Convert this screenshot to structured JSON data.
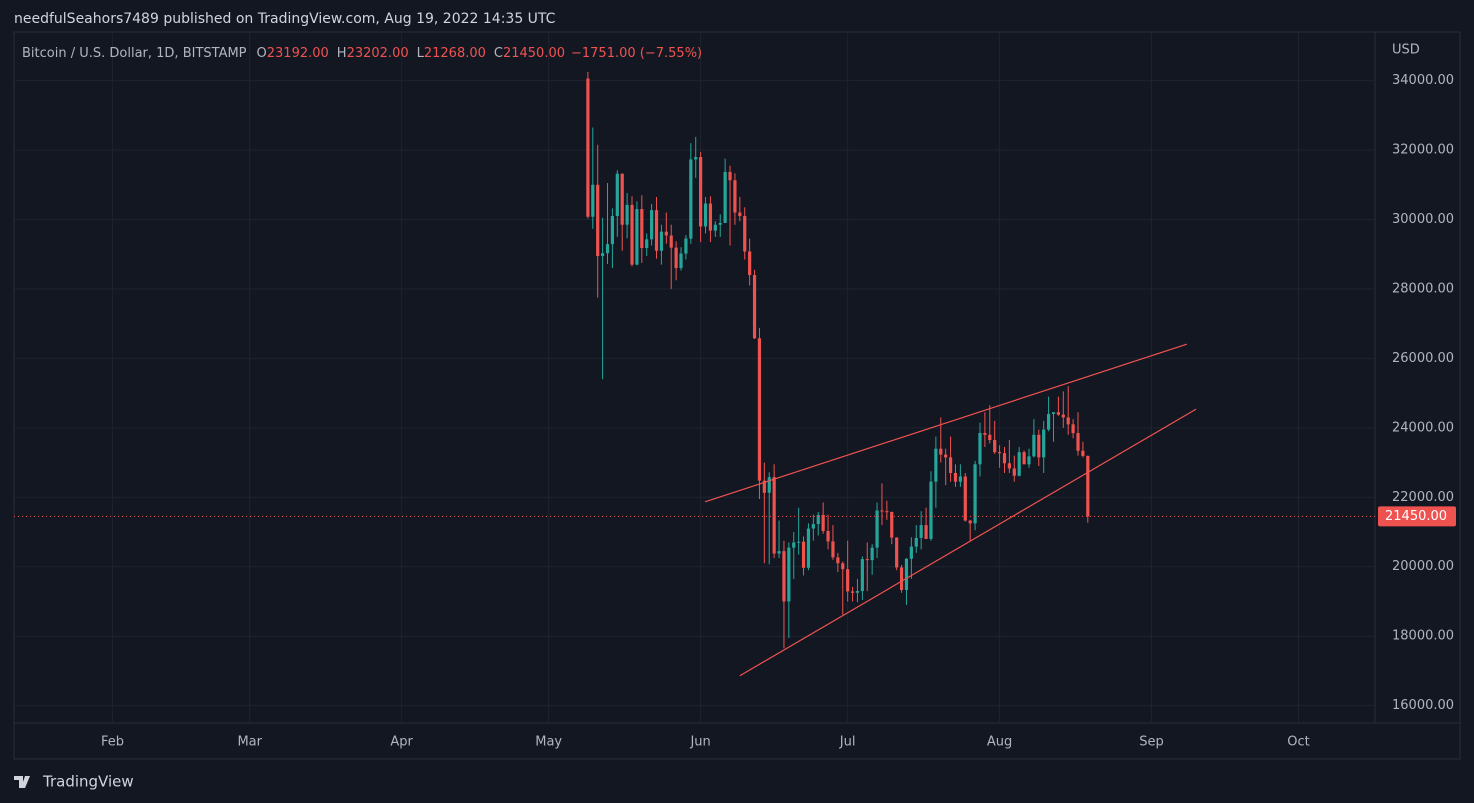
{
  "header": "needfulSeahors7489 published on TradingView.com, Aug 19, 2022 14:35 UTC",
  "footer": "TradingView",
  "chart_data": {
    "type": "candlestick",
    "legend": {
      "name": "Bitcoin / U.S. Dollar, 1D, BITSTAMP",
      "items": [
        {
          "key": "O",
          "value": "23192.00"
        },
        {
          "key": "H",
          "value": "23202.00"
        },
        {
          "key": "L",
          "value": "21268.00"
        },
        {
          "key": "C",
          "value": "21450.00"
        }
      ],
      "change": "−1751.00 (−7.55%)"
    },
    "currency": "USD",
    "up_color": "#26a69a",
    "down_color": "#ef5350",
    "x": [
      0,
      1,
      2,
      3,
      4,
      5,
      6,
      7,
      8,
      9,
      10,
      11,
      12,
      13,
      14,
      15,
      16,
      17,
      18,
      19,
      20,
      21,
      22,
      23,
      24,
      25,
      26,
      27,
      28,
      29,
      30,
      31,
      32,
      33,
      34,
      35,
      36,
      37,
      38,
      39,
      40,
      41,
      42,
      43,
      44,
      45,
      46,
      47,
      48,
      49,
      50,
      51,
      52,
      53,
      54,
      55,
      56,
      57,
      58,
      59,
      60,
      61,
      62,
      63,
      64,
      65,
      66,
      67,
      68,
      69,
      70,
      71,
      72,
      73,
      74,
      75,
      76,
      77,
      78,
      79,
      80,
      81,
      82,
      83,
      84,
      85,
      86,
      87,
      88,
      89,
      90,
      91,
      92,
      93,
      94,
      95,
      96,
      97,
      98,
      99,
      100,
      101,
      102
    ],
    "open": [
      34060,
      30080,
      31000,
      28950,
      29030,
      29290,
      30100,
      31320,
      29850,
      30420,
      28700,
      30300,
      29180,
      29430,
      30270,
      29100,
      29650,
      29540,
      29190,
      28600,
      29020,
      29450,
      31730,
      31800,
      29800,
      30460,
      29680,
      29850,
      29900,
      31370,
      31130,
      30200,
      30100,
      29080,
      28400,
      26580,
      22480,
      22130,
      22580,
      20380,
      20450,
      19000,
      20550,
      20700,
      20720,
      19970,
      21100,
      21230,
      21490,
      21030,
      20730,
      20270,
      20100,
      19930,
      19290,
      19250,
      19300,
      20220,
      20190,
      20550,
      21620,
      21600,
      21580,
      20840,
      19980,
      19330,
      20230,
      20580,
      20830,
      21200,
      20800,
      22450,
      23400,
      23230,
      23150,
      22700,
      22450,
      22600,
      21330,
      21250,
      22950,
      23850,
      23800,
      23650,
      23300,
      23270,
      22980,
      22830,
      22620,
      23300,
      22950,
      23180,
      23800,
      23150,
      23950,
      24400,
      24450,
      24380,
      24300,
      24100,
      23850,
      23340,
      23192
    ],
    "high": [
      34250,
      32650,
      32150,
      30050,
      31050,
      30320,
      31420,
      31320,
      30760,
      30670,
      30520,
      30700,
      29600,
      30450,
      30650,
      29850,
      30200,
      29850,
      29370,
      29200,
      29550,
      32200,
      32380,
      31950,
      30650,
      30670,
      29950,
      30150,
      31750,
      31550,
      31330,
      30650,
      30350,
      29450,
      28550,
      26880,
      23000,
      22720,
      22950,
      21330,
      20750,
      20700,
      21000,
      21700,
      20870,
      21250,
      21500,
      21580,
      21850,
      21500,
      21200,
      20400,
      20150,
      20750,
      19420,
      19650,
      20300,
      20700,
      20650,
      21850,
      22400,
      21900,
      21580,
      20850,
      20050,
      20250,
      20850,
      21200,
      21600,
      21700,
      22750,
      23750,
      24300,
      23400,
      23750,
      22950,
      22950,
      22700,
      21350,
      23050,
      24150,
      24450,
      24650,
      24200,
      23500,
      23450,
      23650,
      23200,
      23450,
      23350,
      23400,
      24250,
      23950,
      24200,
      24900,
      24450,
      24900,
      25050,
      25200,
      24250,
      24450,
      23600,
      23202
    ],
    "low": [
      30030,
      29730,
      27750,
      25400,
      28720,
      28600,
      29500,
      29100,
      29460,
      28650,
      28680,
      28750,
      28950,
      29250,
      28870,
      28700,
      29300,
      28000,
      28250,
      28530,
      28850,
      29300,
      31200,
      29350,
      29600,
      29350,
      29500,
      29500,
      29900,
      29250,
      29850,
      29950,
      28850,
      28100,
      26560,
      21950,
      20100,
      20070,
      20250,
      20250,
      17650,
      17950,
      19650,
      20350,
      19750,
      19900,
      20750,
      20900,
      20950,
      20500,
      20200,
      19850,
      18620,
      19000,
      19000,
      18980,
      19040,
      19300,
      19770,
      20250,
      21200,
      21350,
      20650,
      19900,
      19250,
      18900,
      19650,
      20400,
      20500,
      20800,
      20750,
      21700,
      23000,
      22350,
      22450,
      22300,
      22300,
      21300,
      20750,
      21050,
      22600,
      23450,
      23550,
      23250,
      22850,
      22700,
      22700,
      22450,
      22600,
      22950,
      22850,
      23150,
      22900,
      22700,
      23900,
      23600,
      24350,
      24000,
      23800,
      23700,
      23200,
      23150,
      21268
    ],
    "close": [
      30080,
      31000,
      28950,
      29030,
      29290,
      30100,
      31320,
      29850,
      30420,
      28700,
      30300,
      29180,
      29430,
      30270,
      29100,
      29650,
      29540,
      29190,
      28600,
      29020,
      29450,
      31730,
      31800,
      29800,
      30460,
      29680,
      29850,
      29900,
      31370,
      31130,
      30200,
      30100,
      29080,
      28400,
      26580,
      22480,
      22130,
      22580,
      20380,
      20450,
      19000,
      20550,
      20700,
      20720,
      19970,
      21100,
      21230,
      21490,
      21030,
      20730,
      20270,
      20100,
      19930,
      19290,
      19250,
      19300,
      20220,
      20190,
      20550,
      21620,
      21600,
      21580,
      20840,
      19980,
      19330,
      20230,
      20580,
      20830,
      21200,
      20800,
      22450,
      23400,
      23230,
      23150,
      22700,
      22450,
      22600,
      21330,
      21250,
      22950,
      23850,
      23800,
      23650,
      23300,
      23270,
      22980,
      22830,
      22620,
      23300,
      22950,
      23180,
      23800,
      23150,
      23950,
      24400,
      24450,
      24380,
      24300,
      24100,
      23850,
      23340,
      23192,
      21450
    ],
    "last_price": {
      "value": 21450,
      "label": "21450.00"
    },
    "trendlines": [
      {
        "color": "#ef5350",
        "x": [
          23.9,
          122.2
        ],
        "y": [
          21870,
          26410
        ]
      },
      {
        "color": "#ef5350",
        "x": [
          31.0,
          124.1
        ],
        "y": [
          16860,
          24540
        ]
      }
    ],
    "xlim": [
      -117.1,
      160.6
    ],
    "xticks": [
      {
        "value": -97,
        "label": "Feb"
      },
      {
        "value": -69,
        "label": "Mar"
      },
      {
        "value": -38,
        "label": "Apr"
      },
      {
        "value": -8,
        "label": "May"
      },
      {
        "value": 23,
        "label": "Jun"
      },
      {
        "value": 53,
        "label": "Jul"
      },
      {
        "value": 84,
        "label": "Aug"
      },
      {
        "value": 115,
        "label": "Sep"
      },
      {
        "value": 145,
        "label": "Oct"
      }
    ],
    "ylim": [
      15500,
      35400
    ],
    "yticks": [
      {
        "value": 16000,
        "label": "16000.00"
      },
      {
        "value": 18000,
        "label": "18000.00"
      },
      {
        "value": 20000,
        "label": "20000.00"
      },
      {
        "value": 22000,
        "label": "22000.00"
      },
      {
        "value": 24000,
        "label": "24000.00"
      },
      {
        "value": 26000,
        "label": "26000.00"
      },
      {
        "value": 28000,
        "label": "28000.00"
      },
      {
        "value": 30000,
        "label": "30000.00"
      },
      {
        "value": 32000,
        "label": "32000.00"
      },
      {
        "value": 34000,
        "label": "34000.00"
      }
    ],
    "grid": true
  }
}
